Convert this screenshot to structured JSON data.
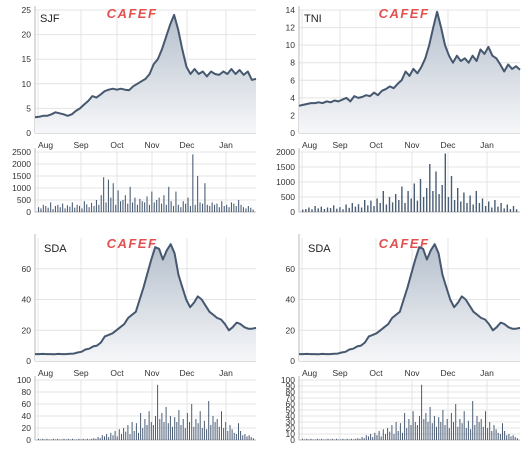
{
  "colors": {
    "line": "#46586f",
    "fill_top": "#b5bfcc",
    "fill_bottom": "#f6f7f9",
    "bar": "#4b5d74",
    "grid": "#e4e4e4",
    "logo": "#e25050"
  },
  "chart_data": [
    {
      "type": "area",
      "ticker": "SJF",
      "watermark": "CAFEF",
      "x_labels": [
        "Aug",
        "Sep",
        "Oct",
        "Nov",
        "Dec",
        "Jan"
      ],
      "price": {
        "yticks": [
          0,
          5,
          10,
          15,
          20,
          25
        ],
        "ylim": [
          0,
          25
        ],
        "values": [
          3.2,
          3.3,
          3.5,
          3.5,
          3.8,
          4.2,
          4.0,
          3.8,
          3.5,
          3.8,
          4.5,
          5.0,
          5.8,
          6.5,
          7.5,
          7.2,
          7.8,
          8.5,
          8.8,
          9.0,
          8.8,
          9.0,
          8.8,
          8.7,
          9.5,
          10.0,
          10.5,
          11.0,
          12.0,
          14.0,
          15.0,
          17.0,
          19.5,
          22.0,
          24.0,
          21.0,
          17.0,
          13.5,
          12.0,
          13.0,
          12.0,
          12.5,
          11.5,
          12.5,
          12.0,
          11.8,
          12.5,
          12.0,
          13.0,
          12.0,
          12.8,
          11.8,
          12.5,
          10.8,
          11.0
        ]
      },
      "volume": {
        "yticks": [
          0,
          500,
          1000,
          1500,
          2000,
          2500
        ],
        "ylim": [
          0,
          2500
        ],
        "values": [
          200,
          150,
          300,
          250,
          180,
          400,
          120,
          250,
          300,
          200,
          350,
          150,
          280,
          220,
          400,
          180,
          300,
          260,
          150,
          450,
          320,
          200,
          380,
          250,
          500,
          300,
          700,
          1450,
          400,
          1350,
          600,
          1200,
          300,
          900,
          450,
          500,
          700,
          350,
          1050,
          400,
          600,
          300,
          550,
          450,
          400,
          650,
          300,
          850,
          400,
          500,
          600,
          350,
          700,
          300,
          1050,
          450,
          250,
          850,
          300,
          200,
          450,
          350,
          600,
          250,
          2400,
          300,
          1500,
          400,
          350,
          1200,
          300,
          250,
          400,
          300,
          350,
          200,
          450,
          250,
          300,
          200,
          400,
          350,
          250,
          500,
          300,
          200,
          150,
          250,
          180,
          100
        ]
      }
    },
    {
      "type": "area",
      "ticker": "TNI",
      "watermark": "CAFEF",
      "x_labels": [
        "Aug",
        "Sep",
        "Oct",
        "Nov",
        "Dec",
        "Jan"
      ],
      "price": {
        "yticks": [
          0,
          2,
          4,
          6,
          8,
          10,
          12,
          14
        ],
        "ylim": [
          0,
          14
        ],
        "values": [
          3.1,
          3.2,
          3.3,
          3.4,
          3.4,
          3.5,
          3.4,
          3.6,
          3.5,
          3.7,
          3.6,
          3.8,
          4.0,
          3.6,
          4.2,
          4.0,
          4.1,
          4.3,
          4.2,
          4.6,
          4.3,
          4.8,
          5.0,
          5.3,
          5.1,
          5.6,
          6.0,
          7.0,
          6.5,
          7.3,
          6.8,
          7.5,
          8.5,
          10.0,
          12.0,
          13.8,
          12.0,
          10.0,
          8.8,
          8.0,
          8.8,
          8.2,
          8.5,
          8.0,
          8.8,
          8.2,
          9.5,
          9.0,
          9.8,
          8.8,
          8.5,
          7.8,
          7.0,
          7.8,
          7.3,
          7.6,
          7.2
        ]
      },
      "volume": {
        "yticks": [
          0,
          500,
          1000,
          1500,
          2000
        ],
        "ylim": [
          0,
          2000
        ],
        "values": [
          80,
          100,
          150,
          90,
          200,
          120,
          180,
          100,
          150,
          130,
          220,
          110,
          160,
          90,
          250,
          140,
          300,
          180,
          260,
          150,
          400,
          220,
          380,
          200,
          450,
          300,
          700,
          250,
          500,
          320,
          600,
          400,
          850,
          300,
          700,
          450,
          950,
          380,
          1100,
          500,
          800,
          1600,
          700,
          1350,
          600,
          900,
          1950,
          500,
          1200,
          400,
          800,
          350,
          650,
          300,
          550,
          250,
          700,
          300,
          450,
          200,
          350,
          150,
          400,
          180,
          300,
          120,
          250,
          100,
          200,
          90
        ]
      }
    },
    {
      "type": "area",
      "ticker": "SDA",
      "watermark": "CAFEF",
      "x_labels": [
        "Aug",
        "Sep",
        "Oct",
        "Nov",
        "Dec",
        "Jan"
      ],
      "price": {
        "yticks": [
          0,
          20,
          40,
          60
        ],
        "ylim": [
          0,
          80
        ],
        "values": [
          4.5,
          4.5,
          4.6,
          4.5,
          4.5,
          4.4,
          4.6,
          4.5,
          4.5,
          4.7,
          4.8,
          5.5,
          6.0,
          7.5,
          8.0,
          9.5,
          10.0,
          12.0,
          16.0,
          17.0,
          18.0,
          20.0,
          22.0,
          24.0,
          28.0,
          30.0,
          32.0,
          40.0,
          48.0,
          57.0,
          66.0,
          74.0,
          73.0,
          66.0,
          72.0,
          76.0,
          70.0,
          56.0,
          48.0,
          40.0,
          35.0,
          38.0,
          42.0,
          40.0,
          36.0,
          32.0,
          30.0,
          28.0,
          27.0,
          24.0,
          20.0,
          22.0,
          25.0,
          24.0,
          22.0,
          21.0,
          21.0,
          21.5
        ]
      },
      "volume": {
        "yticks": [
          0,
          20,
          40,
          60,
          80,
          100
        ],
        "ylim": [
          0,
          100
        ],
        "values": [
          2,
          1,
          2,
          1,
          2,
          1,
          1,
          2,
          1,
          2,
          1,
          1,
          2,
          1,
          2,
          1,
          2,
          1,
          1,
          2,
          1,
          2,
          1,
          2,
          1,
          2,
          3,
          2,
          5,
          3,
          8,
          6,
          10,
          5,
          12,
          8,
          15,
          6,
          18,
          10,
          20,
          14,
          25,
          10,
          30,
          15,
          28,
          12,
          45,
          20,
          35,
          25,
          48,
          30,
          25,
          40,
          92,
          35,
          45,
          30,
          55,
          28,
          40,
          22,
          38,
          30,
          50,
          25,
          35,
          20,
          45,
          30,
          60,
          22,
          35,
          28,
          48,
          20,
          32,
          18,
          65,
          25,
          40,
          30,
          35,
          22,
          48,
          20,
          30,
          15,
          25,
          18,
          12,
          10,
          28,
          15,
          8,
          10,
          6,
          8,
          5,
          3
        ]
      }
    },
    {
      "type": "area",
      "ticker": "SDA",
      "watermark": "CAFEF",
      "x_labels": [
        "Aug",
        "Sep",
        "Oct",
        "Nov",
        "Dec",
        "Jan"
      ],
      "price": {
        "yticks": [
          0,
          20,
          40,
          60
        ],
        "ylim": [
          0,
          80
        ],
        "values": [
          4.5,
          4.5,
          4.6,
          4.5,
          4.5,
          4.4,
          4.6,
          4.5,
          4.5,
          4.7,
          4.8,
          5.5,
          6.0,
          7.5,
          8.0,
          9.5,
          10.0,
          12.0,
          16.0,
          17.0,
          18.0,
          20.0,
          22.0,
          24.0,
          28.0,
          30.0,
          32.0,
          40.0,
          48.0,
          57.0,
          66.0,
          74.0,
          73.0,
          66.0,
          72.0,
          76.0,
          70.0,
          56.0,
          48.0,
          40.0,
          35.0,
          38.0,
          42.0,
          40.0,
          36.0,
          32.0,
          30.0,
          28.0,
          27.0,
          24.0,
          20.0,
          22.0,
          25.0,
          24.0,
          22.0,
          21.0,
          21.0,
          21.5
        ]
      },
      "volume": {
        "yticks": [
          0,
          10,
          20,
          30,
          40,
          50,
          60,
          70,
          80,
          90,
          100
        ],
        "ylim": [
          0,
          100
        ],
        "values": [
          2,
          1,
          2,
          1,
          2,
          1,
          1,
          2,
          1,
          2,
          1,
          1,
          2,
          1,
          2,
          1,
          2,
          1,
          1,
          2,
          1,
          2,
          1,
          2,
          1,
          2,
          3,
          2,
          5,
          3,
          8,
          6,
          10,
          5,
          12,
          8,
          15,
          6,
          18,
          10,
          20,
          14,
          25,
          10,
          30,
          15,
          28,
          12,
          45,
          20,
          35,
          25,
          48,
          30,
          25,
          40,
          92,
          35,
          45,
          30,
          55,
          28,
          40,
          22,
          38,
          30,
          50,
          25,
          35,
          20,
          45,
          30,
          60,
          22,
          35,
          28,
          48,
          20,
          32,
          18,
          65,
          25,
          40,
          30,
          35,
          22,
          48,
          20,
          30,
          15,
          25,
          18,
          12,
          10,
          28,
          15,
          8,
          10,
          6,
          8,
          5,
          3
        ]
      }
    }
  ]
}
